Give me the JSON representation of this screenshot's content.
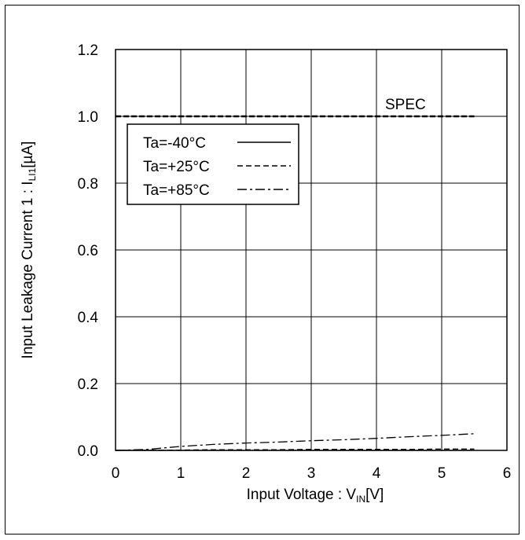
{
  "chart_data": {
    "type": "line",
    "xlabel": "Input Voltage : V",
    "xlabel_sub": "IN",
    "xlabel_unit": "[V]",
    "ylabel": "Input Leakage Current 1 : I",
    "ylabel_sub": "LI1",
    "ylabel_unit": "[µA]",
    "xlim": [
      0,
      6
    ],
    "ylim": [
      0,
      1.2
    ],
    "x_ticks": [
      "0",
      "1",
      "2",
      "3",
      "4",
      "5",
      "6"
    ],
    "y_ticks": [
      "0.0",
      "0.2",
      "0.4",
      "0.6",
      "0.8",
      "1.0",
      "1.2"
    ],
    "grid": true,
    "legend_position": "upper-left",
    "annotation": "SPEC",
    "spec_line": {
      "y": 1.0,
      "x": [
        0,
        5.5
      ]
    },
    "series": [
      {
        "name": "Ta=-40°C",
        "style": "solid",
        "x": [
          0,
          0.5,
          1,
          1.5,
          2,
          2.5,
          3,
          3.5,
          4,
          4.5,
          5,
          5.5
        ],
        "y": [
          0,
          0,
          0,
          0,
          0,
          0,
          0,
          0,
          0,
          0,
          0,
          0
        ]
      },
      {
        "name": "Ta=+25°C",
        "style": "dashed",
        "x": [
          0,
          0.5,
          1,
          1.5,
          2,
          2.5,
          3,
          3.5,
          4,
          4.5,
          5,
          5.5
        ],
        "y": [
          0,
          0.001,
          0.001,
          0.002,
          0.002,
          0.002,
          0.003,
          0.003,
          0.003,
          0.003,
          0.004,
          0.004
        ]
      },
      {
        "name": "Ta=+85°C",
        "style": "dashdot",
        "x": [
          0,
          0.5,
          1,
          1.5,
          2,
          2.5,
          3,
          3.5,
          4,
          4.5,
          5,
          5.5
        ],
        "y": [
          0,
          0.003,
          0.012,
          0.018,
          0.022,
          0.025,
          0.029,
          0.032,
          0.036,
          0.041,
          0.045,
          0.05
        ]
      }
    ]
  }
}
